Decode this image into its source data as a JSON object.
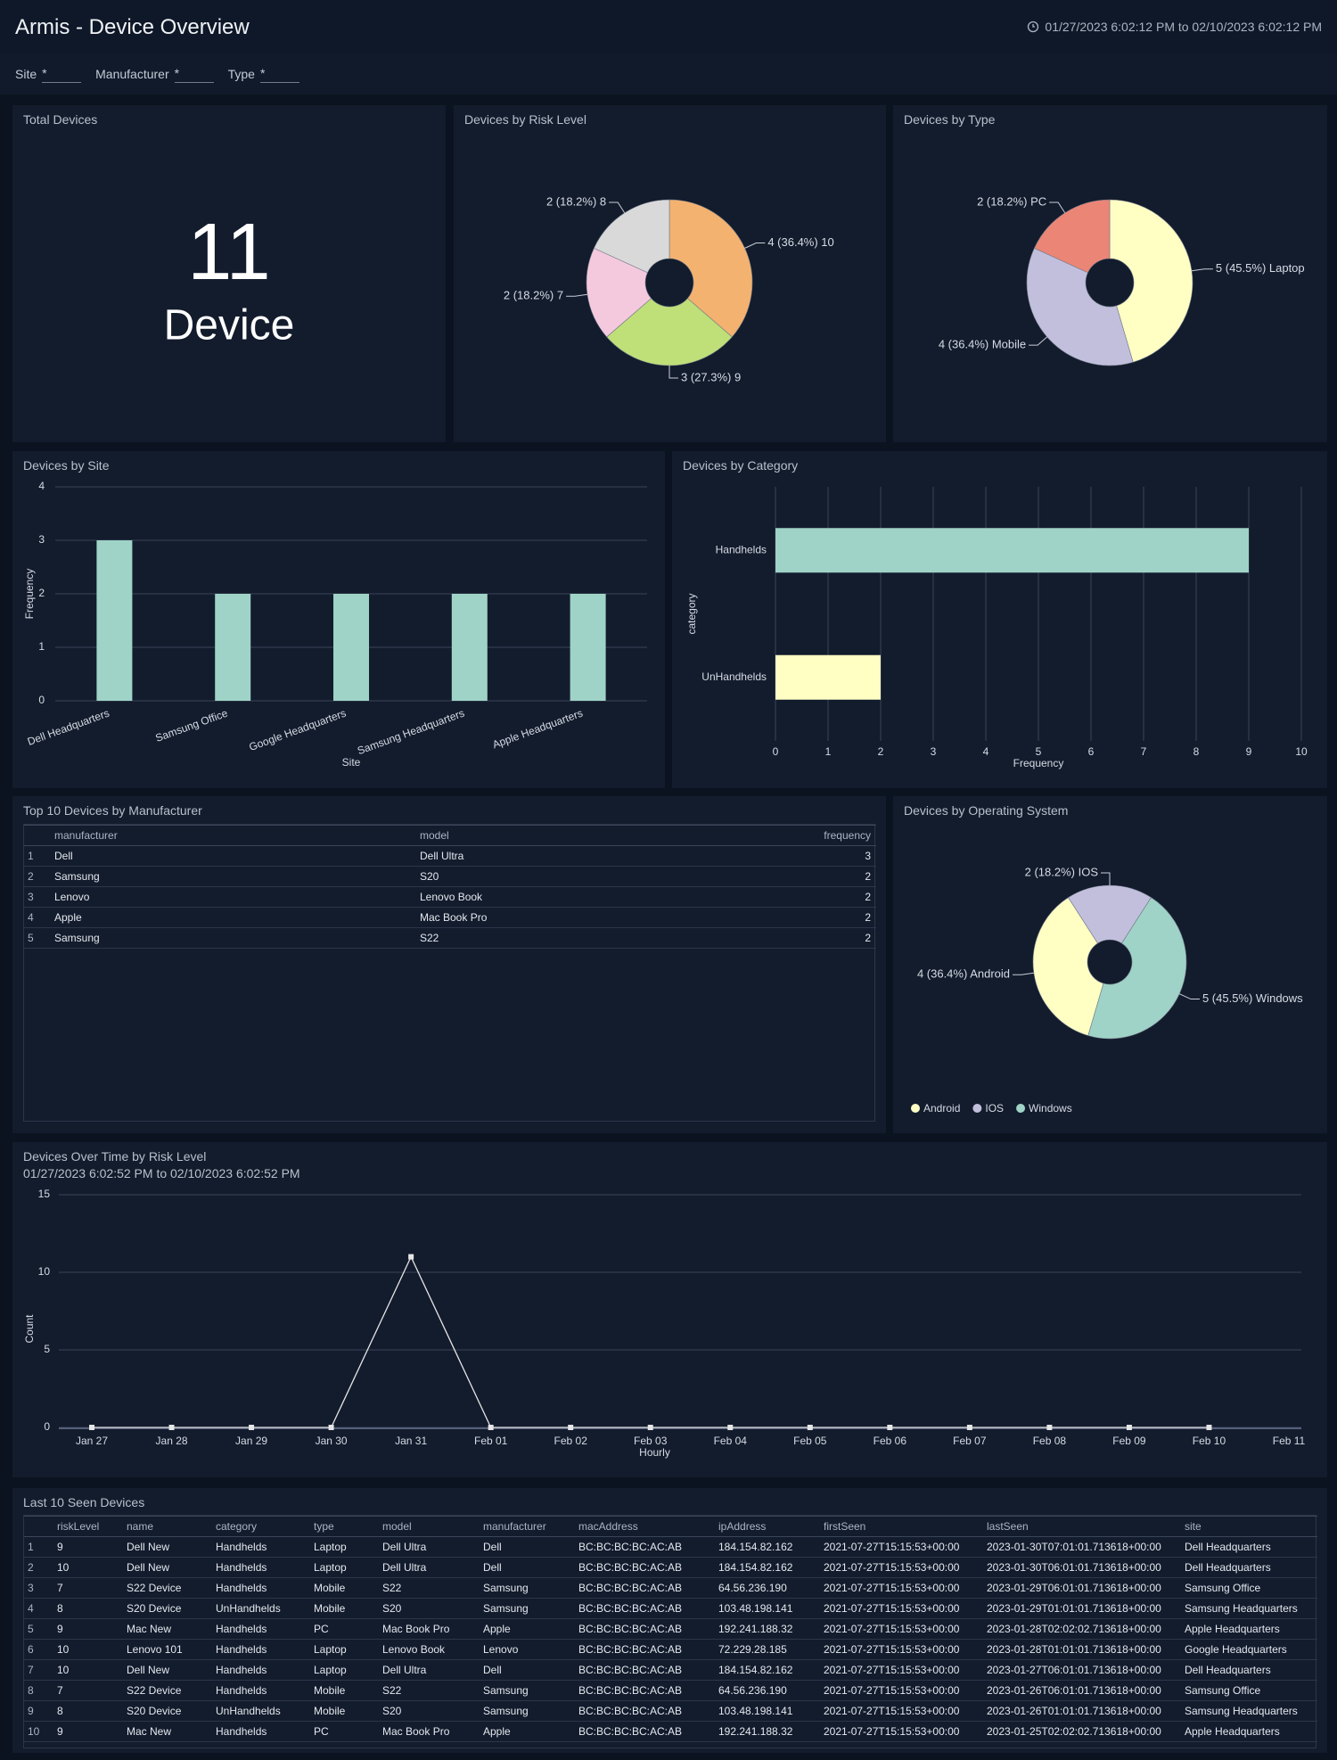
{
  "header": {
    "title": "Armis - Device Overview",
    "time_range": "01/27/2023 6:02:12 PM to 02/10/2023 6:02:12 PM"
  },
  "filters": [
    {
      "label": "Site",
      "value": "*"
    },
    {
      "label": "Manufacturer",
      "value": "*"
    },
    {
      "label": "Type",
      "value": "*"
    }
  ],
  "total_devices": {
    "title": "Total Devices",
    "value": 11,
    "unit": "Device"
  },
  "risk_level": {
    "type": "pie",
    "title": "Devices by Risk Level",
    "values": [
      4,
      3,
      2,
      2
    ],
    "value_labels": [
      "4 (36.4%) 10",
      "3 (27.3%) 9",
      "2 (18.2%) 7",
      "2 (18.2%) 8"
    ],
    "colors": [
      "#f3b26f",
      "#bfdf78",
      "#f4c9de",
      "#d9d9d9"
    ]
  },
  "device_type": {
    "type": "pie",
    "title": "Devices by Type",
    "values": [
      5,
      4,
      2
    ],
    "value_labels": [
      "5 (45.5%) Laptop",
      "4 (36.4%) Mobile",
      "2 (18.2%) PC"
    ],
    "colors": [
      "#ffffc4",
      "#c2bfdd",
      "#eb8576"
    ]
  },
  "site": {
    "type": "bar",
    "title": "Devices by Site",
    "categories": [
      "Dell Headquarters",
      "Samsung Office",
      "Google Headquarters",
      "Samsung Headquarters",
      "Apple Headquarters"
    ],
    "values": [
      3,
      2,
      2,
      2,
      2
    ],
    "color": "#9fd3c7",
    "ylim": [
      0,
      4
    ],
    "yticks": [
      0,
      1,
      2,
      3,
      4
    ],
    "x_label": "Site",
    "y_label": "Frequency",
    "grid": true
  },
  "category": {
    "type": "hbar",
    "title": "Devices by Category",
    "categories": [
      "Handhelds",
      "UnHandhelds"
    ],
    "values": [
      9,
      2
    ],
    "colors": [
      "#9fd3c7",
      "#ffffc4"
    ],
    "xlim": [
      0,
      10
    ],
    "xticks": [
      0,
      1,
      2,
      3,
      4,
      5,
      6,
      7,
      8,
      9,
      10
    ],
    "x_label": "Frequency",
    "y_label": "category",
    "grid": true
  },
  "manufacturer_table": {
    "title": "Top 10 Devices by Manufacturer",
    "columns": [
      "manufacturer",
      "model",
      "frequency"
    ],
    "rows": [
      [
        1,
        "Dell",
        "Dell Ultra",
        3
      ],
      [
        2,
        "Samsung",
        "S20",
        2
      ],
      [
        3,
        "Lenovo",
        "Lenovo Book",
        2
      ],
      [
        4,
        "Apple",
        "Mac Book Pro",
        2
      ],
      [
        5,
        "Samsung",
        "S22",
        2
      ]
    ]
  },
  "operating_system": {
    "type": "pie",
    "title": "Devices by Operating System",
    "categories": [
      "Android",
      "IOS",
      "Windows"
    ],
    "values": [
      4,
      2,
      5
    ],
    "value_labels": [
      "4 (36.4%) Android",
      "2 (18.2%) IOS",
      "5 (45.5%) Windows"
    ],
    "colors": [
      "#ffffc4",
      "#c2bfdd",
      "#9fd3c7"
    ]
  },
  "devices_over_time": {
    "type": "line",
    "title": "Devices Over Time by Risk Level",
    "subtitle": "01/27/2023 6:02:52 PM to 02/10/2023 6:02:52 PM",
    "categories": [
      "Jan 27",
      "Jan 28",
      "Jan 29",
      "Jan 30",
      "Jan 31",
      "Feb 01",
      "Feb 02",
      "Feb 03",
      "Feb 04",
      "Feb 05",
      "Feb 06",
      "Feb 07",
      "Feb 08",
      "Feb 09",
      "Feb 10",
      "Feb 11"
    ],
    "values": [
      0,
      0,
      0,
      0,
      11,
      0,
      0,
      0,
      0,
      0,
      0,
      0,
      0,
      0,
      0,
      null
    ],
    "color": "#e6e6e6",
    "ylim": [
      0,
      15
    ],
    "yticks": [
      0,
      5,
      10,
      15
    ],
    "x_label": "Hourly",
    "y_label": "Count",
    "grid": true
  },
  "last_seen_table": {
    "title": "Last 10 Seen Devices",
    "columns": [
      "riskLevel",
      "name",
      "category",
      "type",
      "model",
      "manufacturer",
      "macAddress",
      "ipAddress",
      "firstSeen",
      "lastSeen",
      "site"
    ],
    "rows": [
      [
        1,
        9,
        "Dell New",
        "Handhelds",
        "Laptop",
        "Dell Ultra",
        "Dell",
        "BC:BC:BC:BC:AC:AB",
        "184.154.82.162",
        "2021-07-27T15:15:53+00:00",
        "2023-01-30T07:01:01.713618+00:00",
        "Dell Headquarters"
      ],
      [
        2,
        10,
        "Dell New",
        "Handhelds",
        "Laptop",
        "Dell Ultra",
        "Dell",
        "BC:BC:BC:BC:AC:AB",
        "184.154.82.162",
        "2021-07-27T15:15:53+00:00",
        "2023-01-30T06:01:01.713618+00:00",
        "Dell Headquarters"
      ],
      [
        3,
        7,
        "S22 Device",
        "Handhelds",
        "Mobile",
        "S22",
        "Samsung",
        "BC:BC:BC:BC:AC:AB",
        "64.56.236.190",
        "2021-07-27T15:15:53+00:00",
        "2023-01-29T06:01:01.713618+00:00",
        "Samsung Office"
      ],
      [
        4,
        8,
        "S20 Device",
        "UnHandhelds",
        "Mobile",
        "S20",
        "Samsung",
        "BC:BC:BC:BC:AC:AB",
        "103.48.198.141",
        "2021-07-27T15:15:53+00:00",
        "2023-01-29T01:01:01.713618+00:00",
        "Samsung Headquarters"
      ],
      [
        5,
        9,
        "Mac New",
        "Handhelds",
        "PC",
        "Mac Book Pro",
        "Apple",
        "BC:BC:BC:BC:AC:AB",
        "192.241.188.32",
        "2021-07-27T15:15:53+00:00",
        "2023-01-28T02:02:02.713618+00:00",
        "Apple Headquarters"
      ],
      [
        6,
        10,
        "Lenovo 101",
        "Handhelds",
        "Laptop",
        "Lenovo Book",
        "Lenovo",
        "BC:BC:BC:BC:AC:AB",
        "72.229.28.185",
        "2021-07-27T15:15:53+00:00",
        "2023-01-28T01:01:01.713618+00:00",
        "Google Headquarters"
      ],
      [
        7,
        10,
        "Dell New",
        "Handhelds",
        "Laptop",
        "Dell Ultra",
        "Dell",
        "BC:BC:BC:BC:AC:AB",
        "184.154.82.162",
        "2021-07-27T15:15:53+00:00",
        "2023-01-27T06:01:01.713618+00:00",
        "Dell Headquarters"
      ],
      [
        8,
        7,
        "S22 Device",
        "Handhelds",
        "Mobile",
        "S22",
        "Samsung",
        "BC:BC:BC:BC:AC:AB",
        "64.56.236.190",
        "2021-07-27T15:15:53+00:00",
        "2023-01-26T06:01:01.713618+00:00",
        "Samsung Office"
      ],
      [
        9,
        8,
        "S20 Device",
        "UnHandhelds",
        "Mobile",
        "S20",
        "Samsung",
        "BC:BC:BC:BC:AC:AB",
        "103.48.198.141",
        "2021-07-27T15:15:53+00:00",
        "2023-01-26T01:01:01.713618+00:00",
        "Samsung Headquarters"
      ],
      [
        10,
        9,
        "Mac New",
        "Handhelds",
        "PC",
        "Mac Book Pro",
        "Apple",
        "BC:BC:BC:BC:AC:AB",
        "192.241.188.32",
        "2021-07-27T15:15:53+00:00",
        "2023-01-25T02:02:02.713618+00:00",
        "Apple Headquarters"
      ]
    ]
  }
}
